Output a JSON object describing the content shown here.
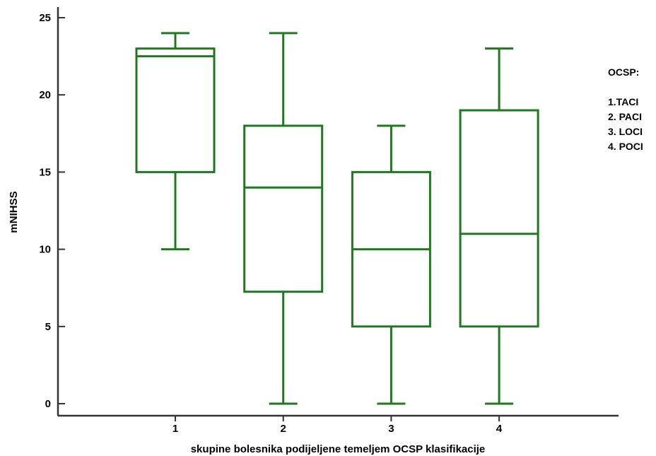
{
  "chart_data": {
    "type": "box",
    "xlabel": "skupine bolesnika podijeljene temeljem OCSP klasifikacije",
    "ylabel": "mNIHSS",
    "ylim": [
      0,
      25
    ],
    "yticks": [
      "0",
      "5",
      "10",
      "15",
      "20",
      "25"
    ],
    "categories": [
      "1",
      "2",
      "3",
      "4"
    ],
    "boxes": [
      {
        "category": "1",
        "min": 10,
        "q1": 15,
        "median": 22.5,
        "q3": 23,
        "max": 24
      },
      {
        "category": "2",
        "min": 0,
        "q1": 7.25,
        "median": 14,
        "q3": 18,
        "max": 24
      },
      {
        "category": "3",
        "min": 0,
        "q1": 5,
        "median": 10,
        "q3": 15,
        "max": 18
      },
      {
        "category": "4",
        "min": 0,
        "q1": 5,
        "median": 11,
        "q3": 19,
        "max": 23
      }
    ],
    "box_color": "#1e7a1e",
    "grid": false,
    "legend_position": "right"
  },
  "legend": {
    "title": "OCSP:",
    "items": [
      "1.TACI",
      "2. PACI",
      "3. LOCI",
      "4. POCI"
    ]
  }
}
